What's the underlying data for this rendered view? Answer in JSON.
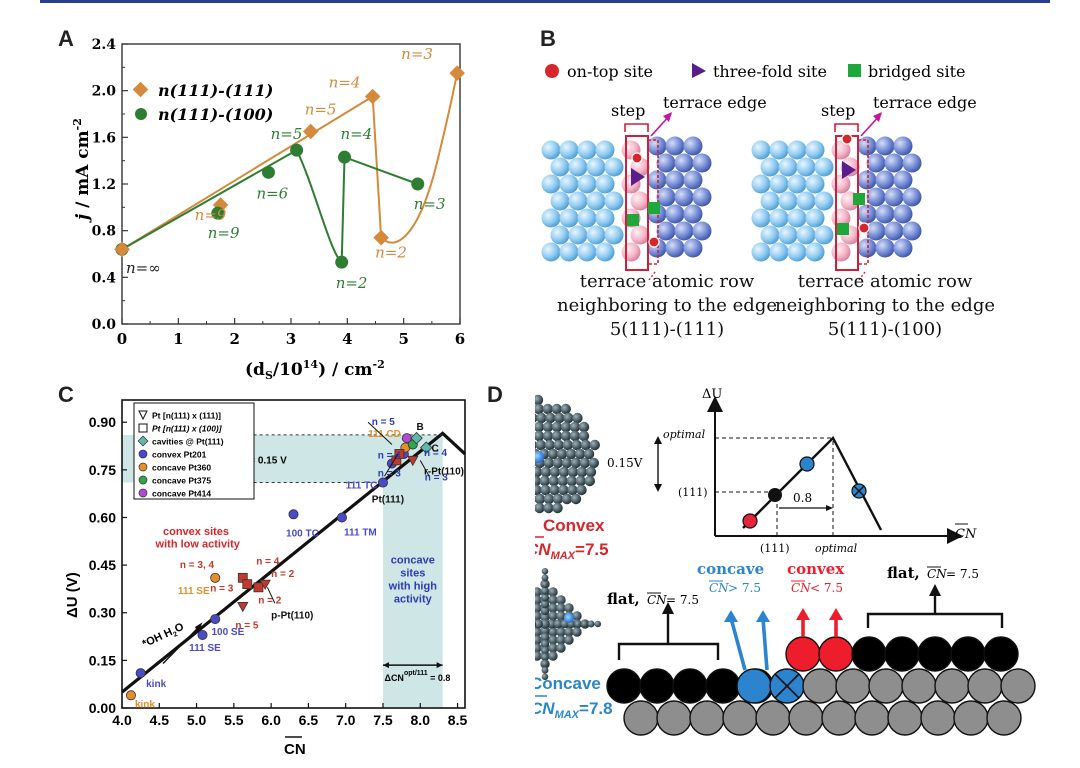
{
  "panels": {
    "a": "A",
    "b": "B",
    "c": "C",
    "d": "D"
  },
  "panelA": {
    "ylabel_main": "j",
    "ylabel_rest": " / mA cm",
    "ylabel_sup": "-2",
    "xlabel_pre": "(d",
    "xlabel_sub": "S",
    "xlabel_mid": "/10",
    "xlabel_sup": "14",
    "xlabel_post": ") / cm",
    "xlabel_sup2": "-2",
    "legend": [
      {
        "label": "n(111)-(111)",
        "color": "#d4893b"
      },
      {
        "label": "n(111)-(100)",
        "color": "#2e7d32"
      }
    ],
    "ninf_label": "n=∞",
    "chart_data": {
      "type": "scatter",
      "xlim": [
        0,
        6
      ],
      "ylim": [
        0.0,
        2.4
      ],
      "xticks": [
        "0",
        "1",
        "2",
        "3",
        "4",
        "5",
        "6"
      ],
      "yticks": [
        "0.0",
        "0.4",
        "0.8",
        "1.2",
        "1.6",
        "2.0",
        "2.4"
      ],
      "series": [
        {
          "name": "n(111)-(111)",
          "color": "#d4893b",
          "points": [
            {
              "x": 0.0,
              "y": 0.64
            },
            {
              "x": 1.75,
              "y": 1.02,
              "label": "n=9"
            },
            {
              "x": 3.35,
              "y": 1.65,
              "label": "n=5"
            },
            {
              "x": 4.45,
              "y": 1.95,
              "label": "n=4"
            },
            {
              "x": 4.6,
              "y": 0.74,
              "label": "n=2"
            },
            {
              "x": 5.95,
              "y": 2.15,
              "label": "n=3"
            }
          ]
        },
        {
          "name": "n(111)-(100)",
          "color": "#2e7d32",
          "points": [
            {
              "x": 0.0,
              "y": 0.64
            },
            {
              "x": 1.7,
              "y": 0.95,
              "label": "n=9"
            },
            {
              "x": 2.6,
              "y": 1.3,
              "label": "n=6"
            },
            {
              "x": 3.1,
              "y": 1.49,
              "label": "n=5"
            },
            {
              "x": 3.9,
              "y": 0.53,
              "label": "n=2"
            },
            {
              "x": 3.95,
              "y": 1.43,
              "label": "n=4"
            },
            {
              "x": 5.25,
              "y": 1.2,
              "label": "n=3"
            }
          ]
        }
      ]
    }
  },
  "panelB": {
    "legend": [
      {
        "label": "on-top site",
        "color": "#d7262b",
        "shape": "circle"
      },
      {
        "label": "three-fold site",
        "color": "#5a1d8c",
        "shape": "triangle"
      },
      {
        "label": "bridged site",
        "color": "#1ea83a",
        "shape": "square"
      }
    ],
    "step_label": "step",
    "terrace_edge_label": "terrace edge",
    "left_caption": [
      "terrace atomic row",
      "neighboring to the edge",
      "5(111)-(111)"
    ],
    "right_caption": [
      "terrace atomic row",
      "neighboring to the edge",
      "5(111)-(100)"
    ]
  },
  "panelC": {
    "ylabel": "ΔU (V)",
    "xlabel": "CN",
    "legend": [
      {
        "label": "Pt [n(111) x (111)]",
        "marker": "triangle-open"
      },
      {
        "label": "Pt [n(111) x (100)]",
        "marker": "square-open"
      },
      {
        "label": "cavities @ Pt(111)",
        "marker": "diamond",
        "color": "#5fb8a8"
      },
      {
        "label": "convex Pt201",
        "marker": "circle",
        "color": "#4a49c9"
      },
      {
        "label": "concave Pt360",
        "marker": "circle",
        "color": "#e58f2b"
      },
      {
        "label": "concave Pt375",
        "marker": "circle",
        "color": "#2ea84a"
      },
      {
        "label": "concave Pt414",
        "marker": "circle",
        "color": "#b14ad1"
      }
    ],
    "annot_delta": "ΔΔU",
    "annot_delta_sub": "OH",
    "annot_delta_sup": "opt/111",
    "annot_delta_val": "= 0.15 V",
    "annot_cn_pre": "ΔCN",
    "annot_cn_sup": "opt/111",
    "annot_cn_val": "= 0.8",
    "convex_text": [
      "convex sites",
      "with low activity"
    ],
    "concave_text": [
      "concave",
      "sites",
      "with high",
      "activity"
    ],
    "arrow_pre": "*OH",
    "arrow_post": "H",
    "arrow_post_sub": "2",
    "arrow_post_end": "O",
    "point_labels": [
      {
        "text": "kink",
        "color": "#4a49c9"
      },
      {
        "text": "kink",
        "color": "#e58f2b"
      },
      {
        "text": "111 SE",
        "color": "#4a49c9"
      },
      {
        "text": "100 SE",
        "color": "#4a49c9"
      },
      {
        "text": "111 SE",
        "color": "#e58f2b"
      },
      {
        "text": "100 TC",
        "color": "#4a49c9"
      },
      {
        "text": "111 TM",
        "color": "#4a49c9"
      },
      {
        "text": "111 TC",
        "color": "#4a49c9"
      },
      {
        "text": "111 CD",
        "color": "#e58f2b"
      },
      {
        "text": "Pt(111)",
        "color": "#111111"
      },
      {
        "text": "r-Pt(110)",
        "color": "#111111"
      },
      {
        "text": "p-Pt(110)",
        "color": "#111111"
      },
      {
        "text": "n = 5",
        "color": "#c0392b"
      },
      {
        "text": "n = 3, 4",
        "color": "#c0392b"
      },
      {
        "text": "n = 4",
        "color": "#c0392b"
      },
      {
        "text": "n = 3",
        "color": "#c0392b"
      },
      {
        "text": "n = 2",
        "color": "#c0392b"
      },
      {
        "text": "n = 2",
        "color": "#c0392b"
      },
      {
        "text": "n = 5",
        "color": "#2a3bb5"
      },
      {
        "text": "n = 4",
        "color": "#2a3bb5"
      },
      {
        "text": "n = 3",
        "color": "#2a3bb5"
      },
      {
        "text": "n = 4",
        "color": "#2a3bb5"
      },
      {
        "text": "n = 3",
        "color": "#2a3bb5"
      },
      {
        "text": "B",
        "color": "#111111"
      },
      {
        "text": "C",
        "color": "#111111"
      }
    ],
    "chart_data": {
      "type": "scatter",
      "xlim": [
        4.0,
        8.6
      ],
      "ylim": [
        0.0,
        0.97
      ],
      "xticks": [
        "4.0",
        "4.5",
        "5.0",
        "5.5",
        "6.0",
        "6.5",
        "7.0",
        "7.5",
        "8.0",
        "8.5"
      ],
      "yticks": [
        "0.00",
        "0.15",
        "0.30",
        "0.45",
        "0.60",
        "0.75",
        "0.90"
      ],
      "volcano_line": [
        [
          4.0,
          0.05
        ],
        [
          8.3,
          0.865
        ],
        [
          8.6,
          0.8
        ]
      ],
      "series": [
        {
          "name": "convex Pt201",
          "color": "#4a49c9",
          "points": [
            [
              4.25,
              0.11
            ],
            [
              5.08,
              0.23
            ],
            [
              5.25,
              0.28
            ],
            [
              6.3,
              0.61
            ],
            [
              6.95,
              0.6
            ],
            [
              7.5,
              0.71
            ],
            [
              7.62,
              0.77
            ],
            [
              7.78,
              0.8
            ]
          ]
        },
        {
          "name": "concave Pt360",
          "color": "#e58f2b",
          "points": [
            [
              4.12,
              0.04
            ],
            [
              5.25,
              0.41
            ],
            [
              7.8,
              0.82
            ]
          ]
        },
        {
          "name": "concave Pt375",
          "color": "#2ea84a",
          "points": [
            [
              7.9,
              0.83
            ]
          ]
        },
        {
          "name": "concave Pt414",
          "color": "#b14ad1",
          "points": [
            [
              7.82,
              0.85
            ]
          ]
        },
        {
          "name": "cavities @ Pt(111)",
          "color": "#5fb8a8",
          "points": [
            [
              7.95,
              0.85
            ],
            [
              8.08,
              0.82
            ]
          ]
        },
        {
          "name": "Pt [n(111) x (100)]",
          "color": "#c0392b",
          "points": [
            [
              5.62,
              0.41
            ],
            [
              5.68,
              0.39
            ],
            [
              5.83,
              0.38
            ],
            [
              7.68,
              0.78
            ],
            [
              7.72,
              0.8
            ]
          ]
        },
        {
          "name": "Pt [n(111) x (111)]",
          "color": "#c0392b",
          "points": [
            [
              5.62,
              0.32
            ],
            [
              5.92,
              0.39
            ],
            [
              7.9,
              0.78
            ]
          ]
        }
      ]
    }
  },
  "panelD": {
    "convex_label": "Convex",
    "convex_cn": "CN",
    "convex_cn_sub": "MAX",
    "convex_cn_val": "=7.5",
    "concave_label": "Concave",
    "concave_cn": "CN",
    "concave_cn_sub": "MAX",
    "concave_cn_val": "=7.8",
    "ylabel": "ΔU",
    "xlabel": "CN",
    "optimal": "optimal",
    "label_111": "(111)",
    "label_015": "0.15V",
    "label_08": "0.8",
    "x_111": "(111)",
    "x_optimal": "optimal",
    "flat_left": "flat,",
    "flat_left_cn": "CN",
    "flat_left_val": "= 7.5",
    "flat_right": "flat,",
    "flat_right_cn": "CN",
    "flat_right_val": "= 7.5",
    "concave_word": "concave",
    "concave_cn_word": "CN",
    "concave_cmp": "> 7.5",
    "convex_word": "convex",
    "convex_cn_word": "CN",
    "convex_cmp": "< 7.5"
  }
}
